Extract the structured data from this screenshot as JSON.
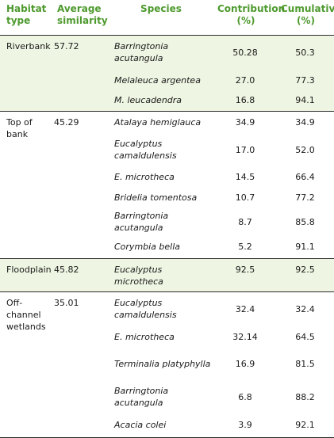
{
  "table": {
    "headers": [
      "Habitat type",
      "Average similarity",
      "Species",
      "Contribution (%)",
      "Cumulative (%)"
    ],
    "groups": [
      {
        "habitat": "Riverbank",
        "similarity": "57.72",
        "rows": [
          {
            "species": "Barringtonia acutangula",
            "contribution": "50.28",
            "cumulative": "50.3"
          },
          {
            "species": "Melaleuca argentea",
            "contribution": "27.0",
            "cumulative": "77.3"
          },
          {
            "species": "M. leucadendra",
            "contribution": "16.8",
            "cumulative": "94.1"
          }
        ]
      },
      {
        "habitat": "Top of bank",
        "similarity": "45.29",
        "rows": [
          {
            "species": "Atalaya hemiglauca",
            "contribution": "34.9",
            "cumulative": "34.9"
          },
          {
            "species": "Eucalyptus camaldulensis",
            "contribution": "17.0",
            "cumulative": "52.0"
          },
          {
            "species": "E. microtheca",
            "contribution": "14.5",
            "cumulative": "66.4"
          },
          {
            "species": "Bridelia tomentosa",
            "contribution": "10.7",
            "cumulative": "77.2"
          },
          {
            "species": "Barringtonia acutangula",
            "contribution": "8.7",
            "cumulative": "85.8"
          },
          {
            "species": "Corymbia bella",
            "contribution": "5.2",
            "cumulative": "91.1"
          }
        ]
      },
      {
        "habitat": "Floodplain",
        "similarity": "45.82",
        "rows": [
          {
            "species": "Eucalyptus microtheca",
            "contribution": "92.5",
            "cumulative": "92.5"
          }
        ]
      },
      {
        "habitat": "Off-channel wetlands",
        "similarity": "35.01",
        "rows": [
          {
            "species": "Eucalyptus camaldulensis",
            "contribution": "32.4",
            "cumulative": "32.4"
          },
          {
            "species": "E. microtheca",
            "contribution": "32.14",
            "cumulative": "64.5"
          },
          {
            "species": "Terminalia platyphylla",
            "contribution": "16.9",
            "cumulative": "81.5"
          },
          {
            "species": "Barringtonia acutangula",
            "contribution": "6.8",
            "cumulative": "88.2"
          },
          {
            "species": "Acacia colei",
            "contribution": "3.9",
            "cumulative": "92.1"
          }
        ]
      }
    ]
  }
}
